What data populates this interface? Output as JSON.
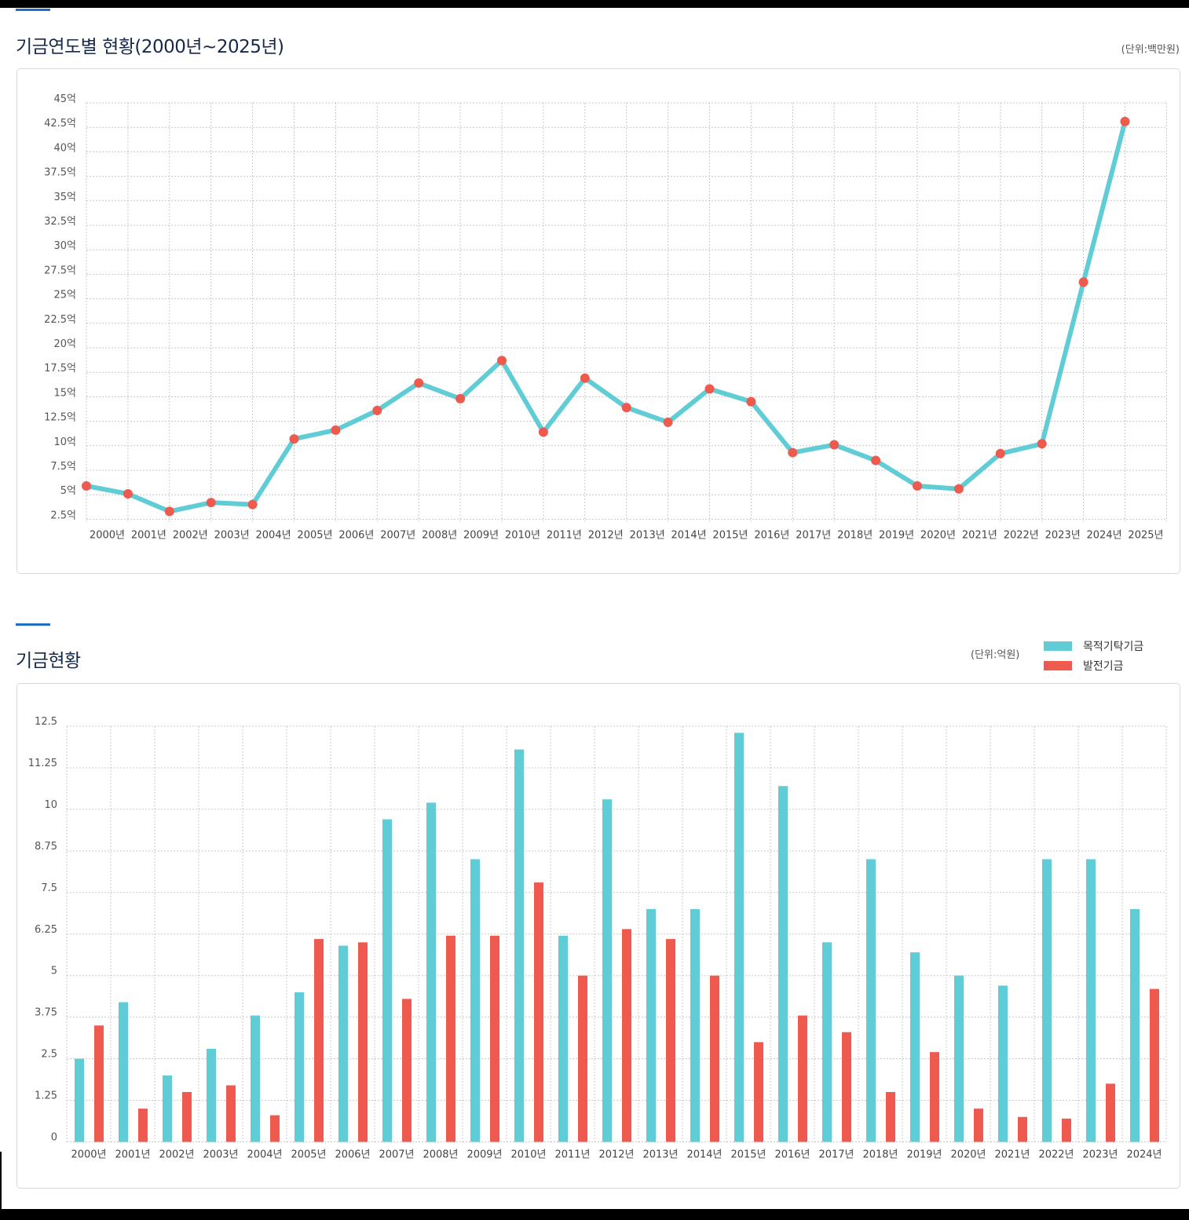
{
  "section1": {
    "title": "기금연도별 현황(2000년~2025년)",
    "unit": "(단위:백만원)"
  },
  "section2": {
    "title": "기금현황",
    "unit": "(단위:억원)",
    "legend": [
      {
        "label": "목적기탁기금",
        "color": "#60cdd6"
      },
      {
        "label": "발전기금",
        "color": "#ef5a4f"
      }
    ]
  },
  "colors": {
    "line": "#60cdd6",
    "marker": "#ef5a4f",
    "bar_teal": "#60cdd6",
    "bar_red": "#ef5a4f",
    "accent": "#1f6fc9",
    "title": "#17294a"
  },
  "chart_data": [
    {
      "type": "line",
      "title": "기금연도별 현황(2000년~2025년)",
      "xlabel": "",
      "ylabel": "",
      "unit": "(단위:백만원)",
      "categories": [
        "2000년",
        "2001년",
        "2002년",
        "2003년",
        "2004년",
        "2005년",
        "2006년",
        "2007년",
        "2008년",
        "2009년",
        "2010년",
        "2011년",
        "2012년",
        "2013년",
        "2014년",
        "2015년",
        "2016년",
        "2017년",
        "2018년",
        "2019년",
        "2020년",
        "2021년",
        "2022년",
        "2023년",
        "2024년",
        "2025년"
      ],
      "values": [
        5.9,
        5.1,
        3.3,
        4.2,
        4.0,
        10.7,
        11.6,
        13.6,
        16.4,
        14.8,
        18.7,
        11.4,
        16.9,
        13.9,
        12.4,
        15.8,
        14.5,
        9.3,
        10.1,
        8.5,
        5.9,
        5.6,
        9.2,
        10.2,
        26.7,
        43.1
      ],
      "value_unit": "억",
      "yticks": [
        "2.5억",
        "5억",
        "7.5억",
        "10억",
        "12.5억",
        "15억",
        "17.5억",
        "20억",
        "22.5억",
        "25억",
        "27.5억",
        "30억",
        "32.5억",
        "35억",
        "37.5억",
        "40억",
        "42.5억",
        "45억"
      ],
      "ylim": [
        2.5,
        45
      ],
      "grid": true,
      "legend": "none"
    },
    {
      "type": "bar",
      "title": "기금현황",
      "unit": "(단위:억원)",
      "xlabel": "",
      "ylabel": "",
      "categories": [
        "2000년",
        "2001년",
        "2002년",
        "2003년",
        "2004년",
        "2005년",
        "2006년",
        "2007년",
        "2008년",
        "2009년",
        "2010년",
        "2011년",
        "2012년",
        "2013년",
        "2014년",
        "2015년",
        "2016년",
        "2017년",
        "2018년",
        "2019년",
        "2020년",
        "2021년",
        "2022년",
        "2023년",
        "2024년"
      ],
      "series": [
        {
          "name": "목적기탁기금",
          "color": "#60cdd6",
          "values": [
            2.5,
            4.2,
            2.0,
            2.8,
            3.8,
            4.5,
            5.9,
            9.7,
            10.2,
            8.5,
            11.8,
            6.2,
            10.3,
            7.0,
            7.0,
            12.3,
            10.7,
            6.0,
            8.5,
            5.7,
            5.0,
            4.7,
            8.5,
            8.5,
            7.0
          ]
        },
        {
          "name": "발전기금",
          "color": "#ef5a4f",
          "values": [
            3.5,
            1.0,
            1.5,
            1.7,
            0.8,
            6.1,
            6.0,
            4.3,
            6.2,
            6.2,
            7.8,
            5.0,
            6.4,
            6.1,
            5.0,
            3.0,
            3.8,
            3.3,
            1.5,
            2.7,
            1.0,
            0.75,
            0.7,
            1.75,
            4.6
          ]
        }
      ],
      "yticks": [
        "0",
        "1.25",
        "2.5",
        "3.75",
        "5",
        "6.25",
        "7.5",
        "8.75",
        "10",
        "11.25",
        "12.5"
      ],
      "ylim": [
        0,
        12.5
      ],
      "grid": true,
      "legend": "top-right"
    }
  ]
}
